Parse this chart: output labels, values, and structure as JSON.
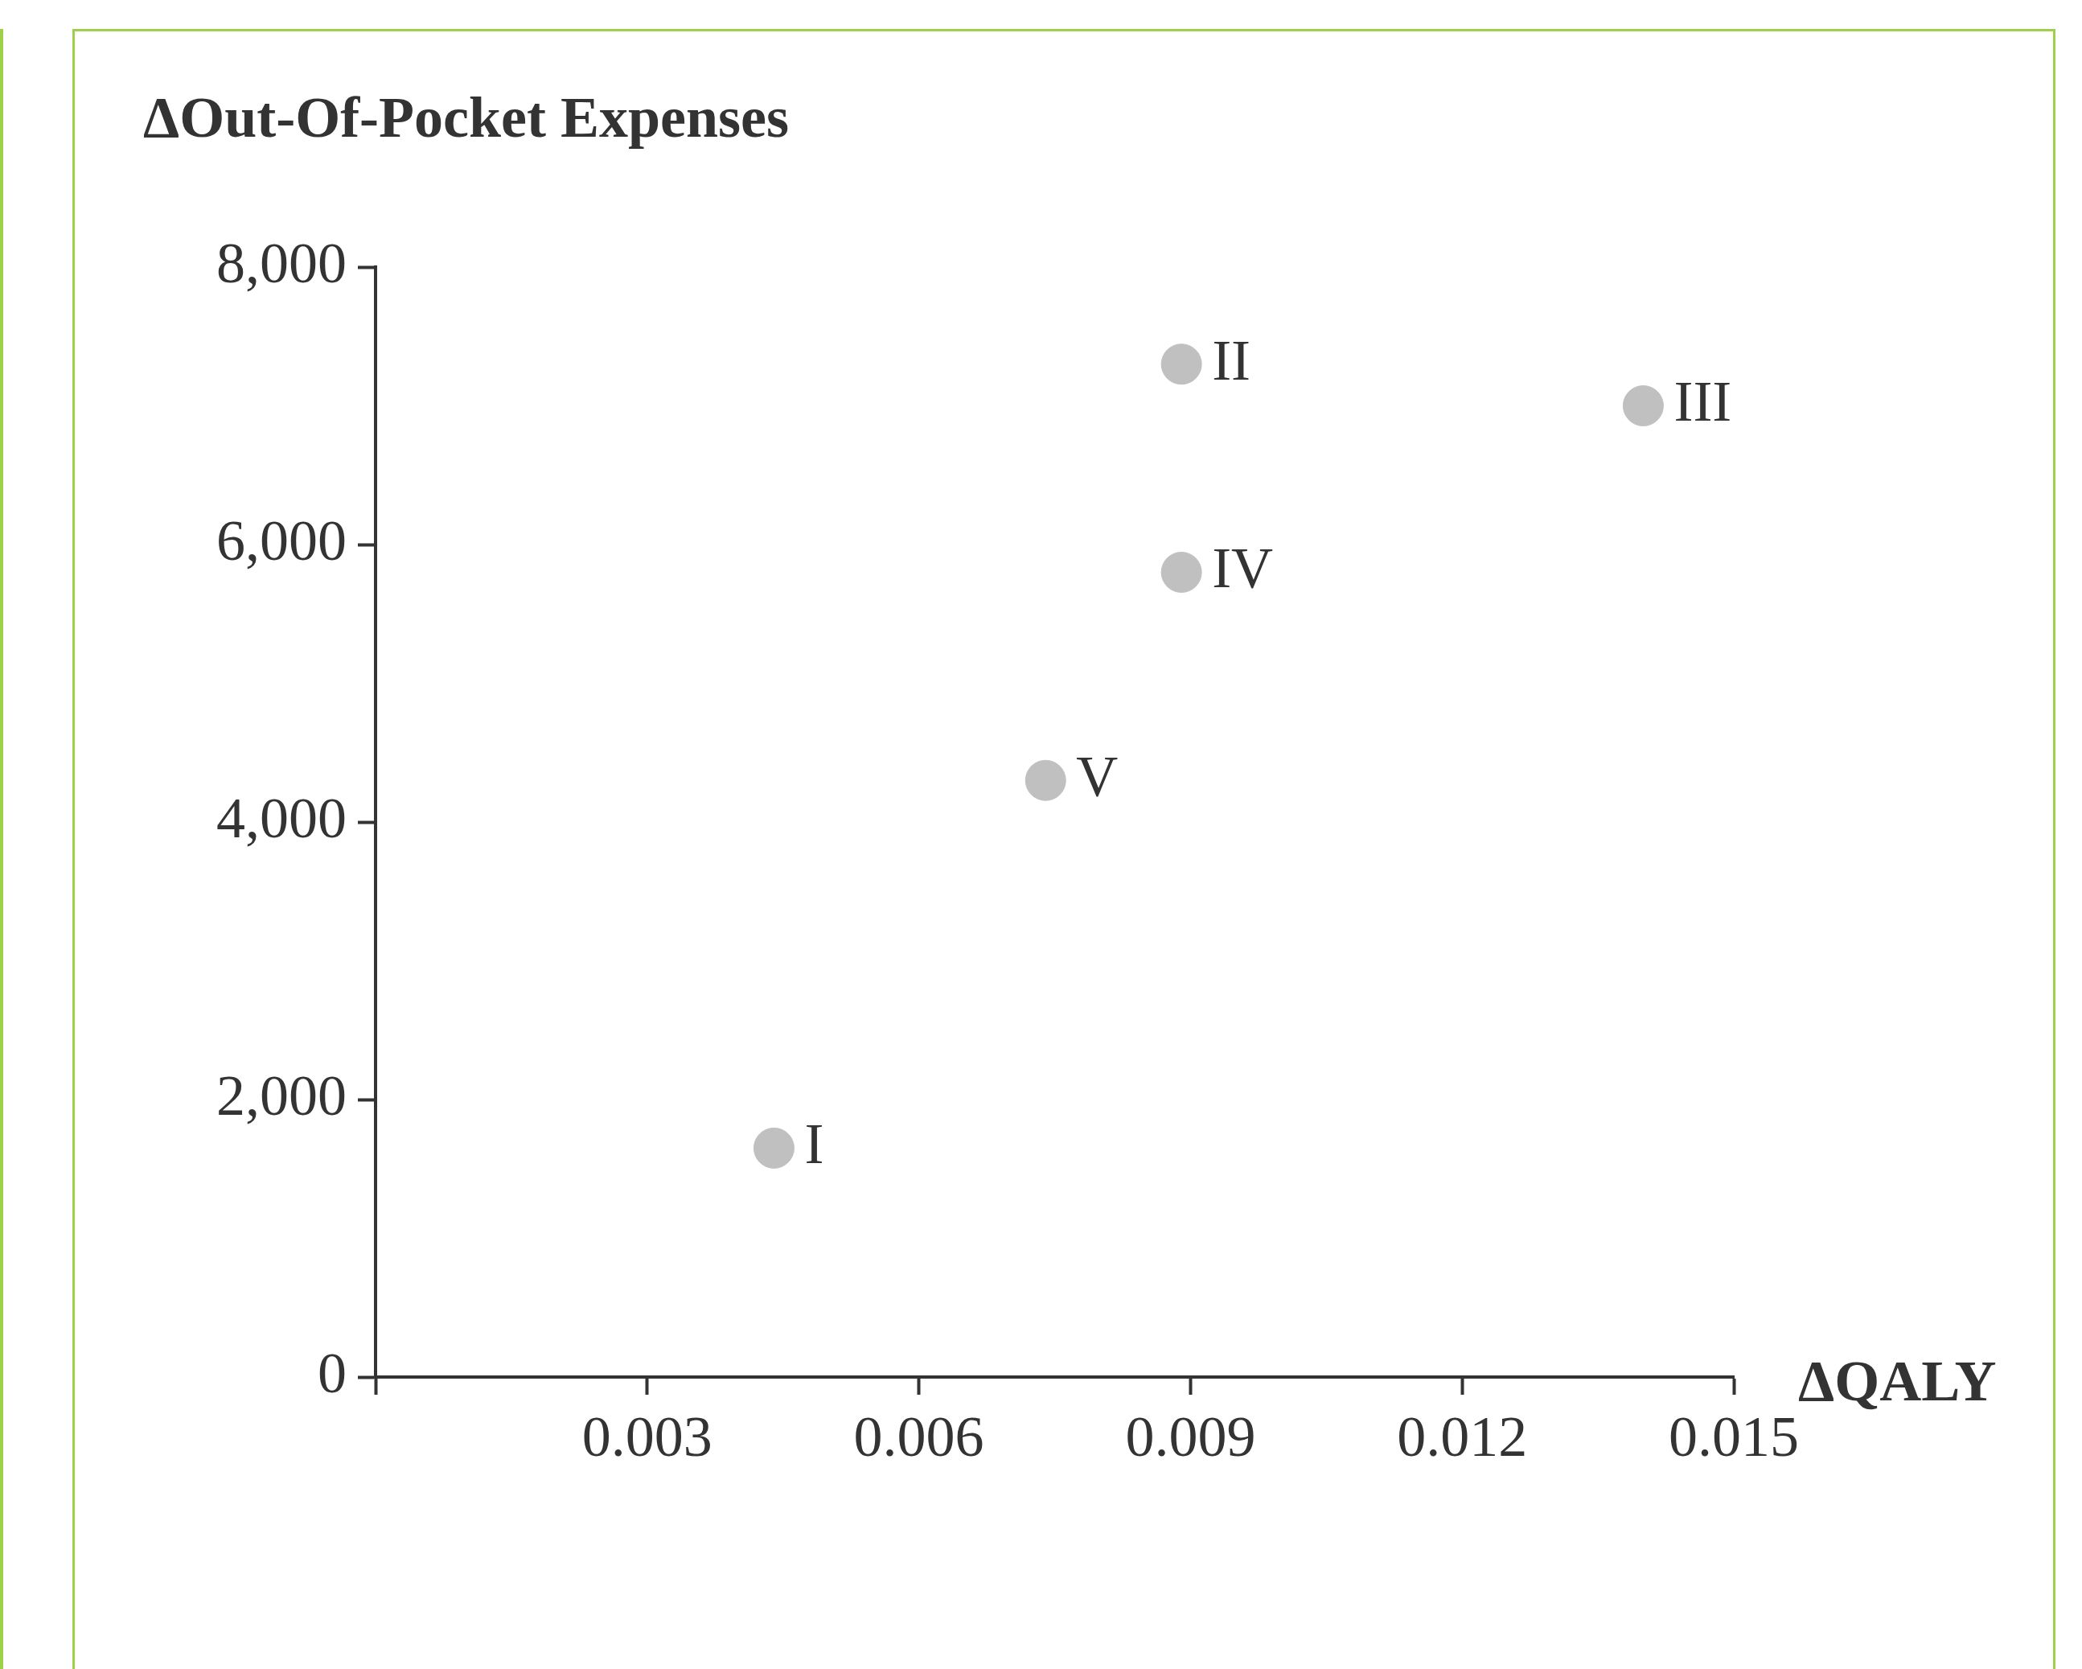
{
  "chart_data": {
    "type": "scatter",
    "ylabel": "ΔOut-Of-Pocket Expenses",
    "xlabel": "ΔQALY",
    "x": [
      0.0044,
      0.0089,
      0.014,
      0.0089,
      0.0074
    ],
    "values": [
      1650,
      7300,
      7000,
      5800,
      4300
    ],
    "color": "#c0c0c0",
    "marker": "circle",
    "xlim": [
      0,
      0.015
    ],
    "xticks": [
      {
        "value": 0,
        "label": null
      },
      0.003,
      0.006,
      0.009,
      0.012,
      0.015
    ],
    "ylim": [
      0,
      8000
    ],
    "yticks": [
      0,
      {
        "value": 2000,
        "label": "2,000"
      },
      {
        "value": 4000,
        "label": "4,000"
      },
      {
        "value": 6000,
        "label": "6,000"
      },
      {
        "value": 8000,
        "label": "8,000"
      }
    ],
    "grid": false,
    "legend": false,
    "annotations": [
      {
        "text": "I",
        "x": 0.0044,
        "y": 1650
      },
      {
        "text": "II",
        "x": 0.0089,
        "y": 7300
      },
      {
        "text": "III",
        "x": 0.014,
        "y": 7000
      },
      {
        "text": "IV",
        "x": 0.0089,
        "y": 5800
      },
      {
        "text": "V",
        "x": 0.0074,
        "y": 4300
      }
    ]
  }
}
